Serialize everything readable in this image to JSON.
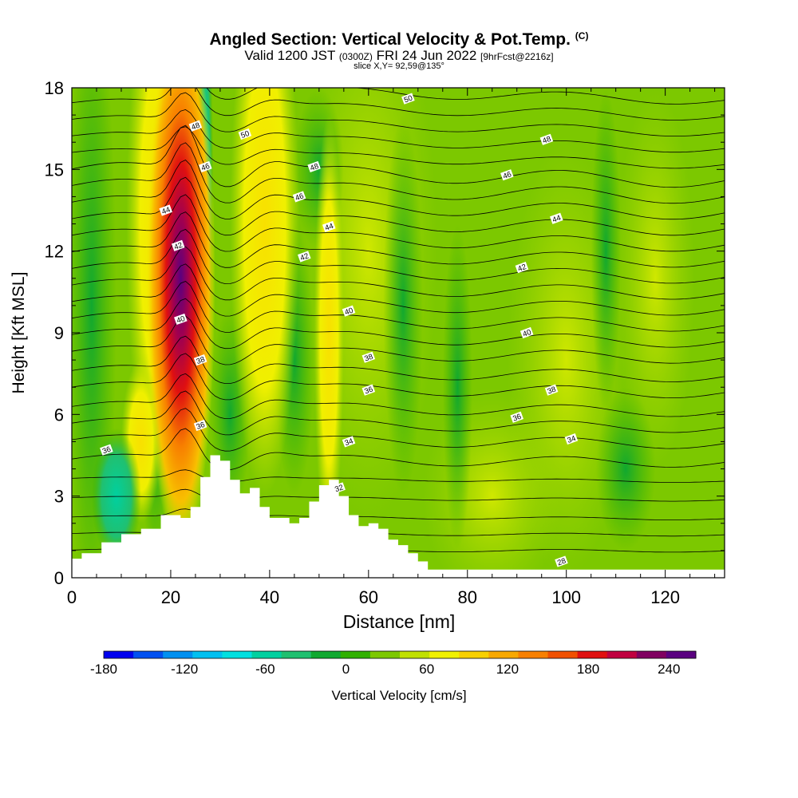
{
  "title": "Angled Section: Vertical Velocity & Pot.Temp.",
  "title_suffix": "(C)",
  "subtitle_main_a": "Valid 1200 JST",
  "subtitle_small_a": "(0300Z)",
  "subtitle_main_b": "FRI 24 Jun 2022",
  "subtitle_small_b": "[9hrFcst@2216z]",
  "slice_info": "slice X,Y= 92,59@135°",
  "chart_data": {
    "type": "heatmap",
    "xlabel": "Distance [nm]",
    "ylabel": "Height [Kft MSL]",
    "xlim": [
      0,
      132
    ],
    "ylim": [
      0,
      18
    ],
    "x_ticks": [
      0,
      20,
      40,
      60,
      80,
      100,
      120
    ],
    "y_ticks": [
      0,
      3,
      6,
      9,
      12,
      15,
      18
    ],
    "colorbar": {
      "label": "Vertical Velocity [cm/s]",
      "range": [
        -180,
        260
      ],
      "tick_values": [
        -180,
        -120,
        -60,
        0,
        60,
        120,
        180,
        240
      ],
      "colors": [
        "#0000ee",
        "#0050f0",
        "#0090f0",
        "#00c0f0",
        "#00e0e0",
        "#00d0a0",
        "#20c070",
        "#10a830",
        "#30b000",
        "#7cc800",
        "#c0e000",
        "#f0f000",
        "#f8d000",
        "#f8a800",
        "#f88000",
        "#f05000",
        "#e01010",
        "#c00040",
        "#800060",
        "#5a0080"
      ]
    },
    "terrain_height_kft": [
      [
        0,
        0.7
      ],
      [
        2,
        0.9
      ],
      [
        6,
        1.3
      ],
      [
        10,
        1.6
      ],
      [
        14,
        1.8
      ],
      [
        18,
        2.3
      ],
      [
        22,
        2.2
      ],
      [
        24,
        2.6
      ],
      [
        26,
        3.7
      ],
      [
        28,
        4.5
      ],
      [
        30,
        4.3
      ],
      [
        32,
        3.6
      ],
      [
        34,
        3.1
      ],
      [
        36,
        3.3
      ],
      [
        38,
        2.6
      ],
      [
        40,
        2.2
      ],
      [
        44,
        2.0
      ],
      [
        46,
        2.2
      ],
      [
        48,
        2.8
      ],
      [
        50,
        3.4
      ],
      [
        52,
        3.6
      ],
      [
        54,
        3.0
      ],
      [
        56,
        2.3
      ],
      [
        58,
        1.9
      ],
      [
        60,
        2.0
      ],
      [
        62,
        1.8
      ],
      [
        64,
        1.4
      ],
      [
        66,
        1.2
      ],
      [
        68,
        0.9
      ],
      [
        70,
        0.6
      ],
      [
        72,
        0.3
      ],
      [
        76,
        0.3
      ],
      [
        132,
        0.3
      ]
    ],
    "vertical_velocity_features": [
      {
        "x": 22,
        "height": 10.5,
        "peak_cm_s": 240,
        "description": "strong updraft core"
      },
      {
        "x": 27,
        "height": 13.0,
        "peak_cm_s": -60
      },
      {
        "x": 39,
        "height": 14.0,
        "peak_cm_s": 60
      },
      {
        "x": 52,
        "height": 9.0,
        "peak_cm_s": 60
      },
      {
        "x": 10,
        "height": 2.5,
        "peak_cm_s": -60
      }
    ],
    "pot_temp_contours_c": [
      28,
      30,
      32,
      34,
      36,
      38,
      40,
      42,
      44,
      46,
      48,
      50
    ],
    "contour_labels": [
      {
        "x": 7,
        "h": 4.7,
        "text": "36"
      },
      {
        "x": 25,
        "h": 16.6,
        "text": "48"
      },
      {
        "x": 35,
        "h": 16.3,
        "text": "50"
      },
      {
        "x": 27,
        "h": 15.1,
        "text": "46"
      },
      {
        "x": 19,
        "h": 13.5,
        "text": "44"
      },
      {
        "x": 21.5,
        "h": 12.2,
        "text": "42"
      },
      {
        "x": 22,
        "h": 9.5,
        "text": "40"
      },
      {
        "x": 26,
        "h": 8.0,
        "text": "38"
      },
      {
        "x": 26,
        "h": 5.6,
        "text": "36"
      },
      {
        "x": 68,
        "h": 17.6,
        "text": "50"
      },
      {
        "x": 49,
        "h": 15.1,
        "text": "48"
      },
      {
        "x": 46,
        "h": 14.0,
        "text": "46"
      },
      {
        "x": 52,
        "h": 12.9,
        "text": "44"
      },
      {
        "x": 47,
        "h": 11.8,
        "text": "42"
      },
      {
        "x": 56,
        "h": 9.8,
        "text": "40"
      },
      {
        "x": 60,
        "h": 8.1,
        "text": "38"
      },
      {
        "x": 60,
        "h": 6.9,
        "text": "36"
      },
      {
        "x": 56,
        "h": 5.0,
        "text": "34"
      },
      {
        "x": 54,
        "h": 3.3,
        "text": "32"
      },
      {
        "x": 96,
        "h": 16.1,
        "text": "48"
      },
      {
        "x": 88,
        "h": 14.8,
        "text": "46"
      },
      {
        "x": 98,
        "h": 13.2,
        "text": "44"
      },
      {
        "x": 91,
        "h": 11.4,
        "text": "42"
      },
      {
        "x": 92,
        "h": 9.0,
        "text": "40"
      },
      {
        "x": 97,
        "h": 6.9,
        "text": "38"
      },
      {
        "x": 90,
        "h": 5.9,
        "text": "36"
      },
      {
        "x": 101,
        "h": 5.1,
        "text": "34"
      },
      {
        "x": 99,
        "h": 0.6,
        "text": "28"
      }
    ]
  }
}
